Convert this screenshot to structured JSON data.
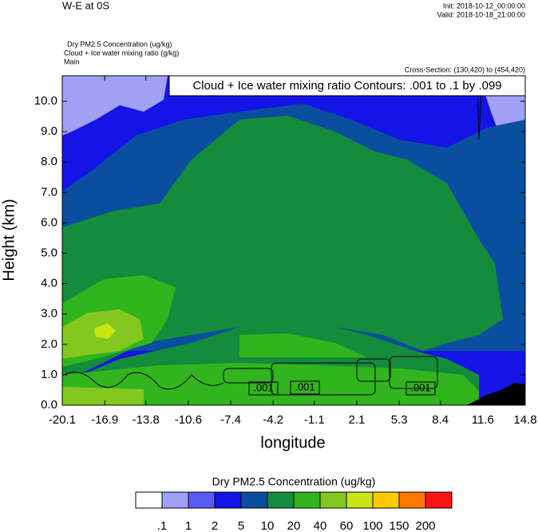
{
  "chart_data": {
    "type": "contour",
    "title": "W-E at 0S",
    "init": "Init: 2018-10-12_00:00:00",
    "valid": "Valid: 2018-10-18_21:00:00",
    "fields": [
      "Dry PM2.5 Concentration   (ug/kg)",
      "Cloud + Ice water mixing ratio   (g/kg)",
      "Main"
    ],
    "cross_section": "Cross-Section: (130,420) to (454,420)",
    "contour_note": "Cloud + Ice water mixing ratio Contours: .001 to .1 by .099",
    "contour_line_labels": [
      ".001",
      ".001",
      ".001"
    ],
    "xlabel": "longitude",
    "ylabel": "Height (km)",
    "xlim": [
      -20.1,
      14.8
    ],
    "xticks": [
      -20.1,
      -16.9,
      -13.8,
      -10.6,
      -7.4,
      -4.2,
      -1.1,
      2.1,
      5.3,
      8.4,
      11.6,
      14.8
    ],
    "ylim": [
      0,
      10.84
    ],
    "yticks": [
      {
        "value": 0,
        "label": "0.0"
      },
      {
        "value": 1,
        "label": "1.0"
      },
      {
        "value": 2,
        "label": "2.0"
      },
      {
        "value": 3,
        "label": "3.0"
      },
      {
        "value": 4,
        "label": "4.0"
      },
      {
        "value": 5,
        "label": "5.0"
      },
      {
        "value": 6,
        "label": "6.0"
      },
      {
        "value": 7,
        "label": "7.0"
      },
      {
        "value": 8,
        "label": "8.0"
      },
      {
        "value": 9,
        "label": "9.0"
      },
      {
        "value": 10,
        "label": "10.0"
      }
    ],
    "colorbar": {
      "title": "Dry PM2.5 Concentration  (ug/kg)",
      "levels": [
        {
          "value": 0.1,
          "label": ".1"
        },
        1,
        2,
        5,
        10,
        20,
        40,
        60,
        100,
        150,
        200
      ],
      "colors": [
        "#ffffff",
        "#a0a0f5",
        "#5a5af5",
        "#1414e6",
        "#0a4ea0",
        "#148c3c",
        "#32b41e",
        "#82c81e",
        "#c8e614",
        "#ffc800",
        "#ff7800",
        "#ff1414"
      ]
    }
  }
}
